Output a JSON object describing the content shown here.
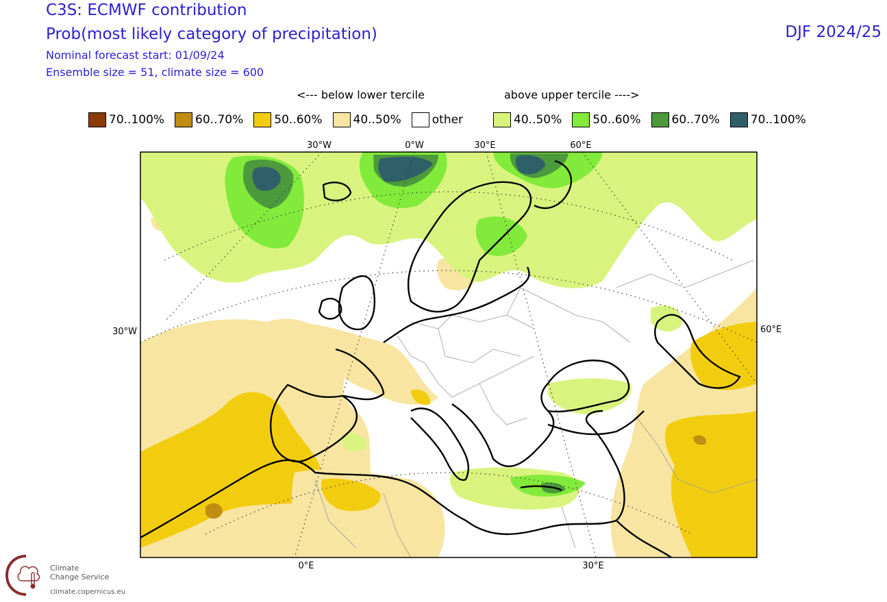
{
  "header": {
    "title_line1": "C3S: ECMWF contribution",
    "title_line2": "Prob(most likely category of precipitation)",
    "forecast_start": "Nominal forecast start: 01/09/24",
    "ensemble": "Ensemble size = 51, climate size = 600",
    "period": "DJF 2024/25"
  },
  "tercile_labels": {
    "below": "<--- below lower tercile",
    "above": "above upper tercile ---->"
  },
  "legend": [
    {
      "label": "70..100%",
      "color": "#8b3a06"
    },
    {
      "label": "60..70%",
      "color": "#c08d12"
    },
    {
      "label": "50..60%",
      "color": "#f2cd0f"
    },
    {
      "label": "40..50%",
      "color": "#f7e5a1"
    },
    {
      "label": "other",
      "color": "#ffffff"
    },
    {
      "label": "40..50%",
      "color": "#d9f47e"
    },
    {
      "label": "50..60%",
      "color": "#82ea3a"
    },
    {
      "label": "60..70%",
      "color": "#4c9a3c"
    },
    {
      "label": "70..100%",
      "color": "#2f5f68"
    }
  ],
  "map": {
    "top_lon_labels": [
      "30°W",
      "0°W",
      "30°E",
      "60°E"
    ],
    "left_lat_label": "30°W",
    "right_lat_label": "60°E",
    "bottom_lon_labels": [
      "0°E",
      "30°E"
    ]
  },
  "logo": {
    "name_line1": "Climate",
    "name_line2": "Change Service",
    "url": "climate.copernicus.eu",
    "color": "#8b2d2d"
  }
}
